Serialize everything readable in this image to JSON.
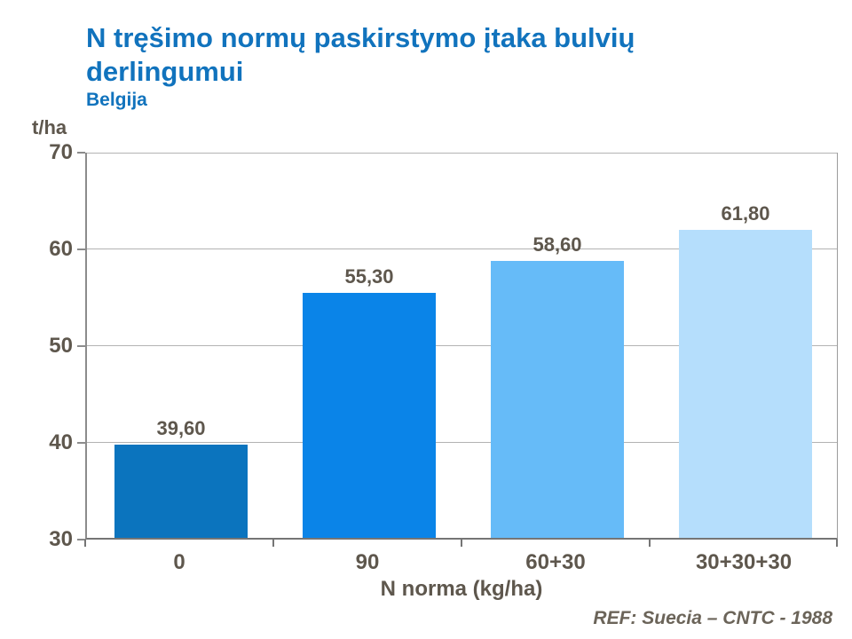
{
  "title": "N tręšimo normų paskirstymo įtaka bulvių derlingumui",
  "subtitle": "Belgija",
  "unit_label": "t/ha",
  "x_axis_title": "N norma (kg/ha)",
  "ref_note": "REF: Suecia – CNTC - 1988",
  "colors": {
    "title_blue": "#1173bd",
    "label_gray": "#5e574d",
    "ref_gray": "#6b6459",
    "gridline": "#b3b3b3",
    "axis": "#757575"
  },
  "chart_data": {
    "type": "bar",
    "title": "N tręšimo normų paskirstymo įtaka bulvių derlingumui",
    "subtitle": "Belgija",
    "categories": [
      "0",
      "90",
      "60+30",
      "30+30+30"
    ],
    "values": [
      39.6,
      55.3,
      58.6,
      61.8
    ],
    "value_labels": [
      "39,60",
      "55,30",
      "58,60",
      "61,80"
    ],
    "bar_colors": [
      "#0b74be",
      "#0a84e8",
      "#66bbf8",
      "#b5defc"
    ],
    "xlabel": "N norma (kg/ha)",
    "ylabel": "t/ha",
    "ylim": [
      30,
      70
    ],
    "yticks": [
      30,
      40,
      50,
      60,
      70
    ],
    "grid": true,
    "legend": false,
    "annotation": "REF: Suecia – CNTC - 1988"
  }
}
